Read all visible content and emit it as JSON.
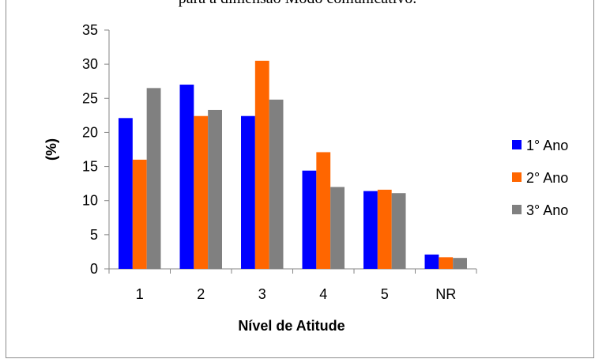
{
  "caption": "para a dimensão Modo comunicativo.",
  "chart_data": {
    "type": "bar",
    "categories": [
      "1",
      "2",
      "3",
      "4",
      "5",
      "NR"
    ],
    "series": [
      {
        "name": "1° Ano",
        "color": "#0000ff",
        "values": [
          22.1,
          27.0,
          22.4,
          14.4,
          11.4,
          2.1
        ]
      },
      {
        "name": "2° Ano",
        "color": "#ff6600",
        "values": [
          16.0,
          22.4,
          30.5,
          17.1,
          11.6,
          1.7
        ]
      },
      {
        "name": "3° Ano",
        "color": "#808080",
        "values": [
          26.5,
          23.3,
          24.8,
          12.0,
          11.1,
          1.6
        ]
      }
    ],
    "xlabel": "Nível de Atitude",
    "ylabel": "(%)",
    "ylim": [
      0,
      35
    ],
    "yticks": [
      "0",
      "5",
      "10",
      "15",
      "20",
      "25",
      "30",
      "35"
    ],
    "grid": false,
    "legend": "right"
  }
}
